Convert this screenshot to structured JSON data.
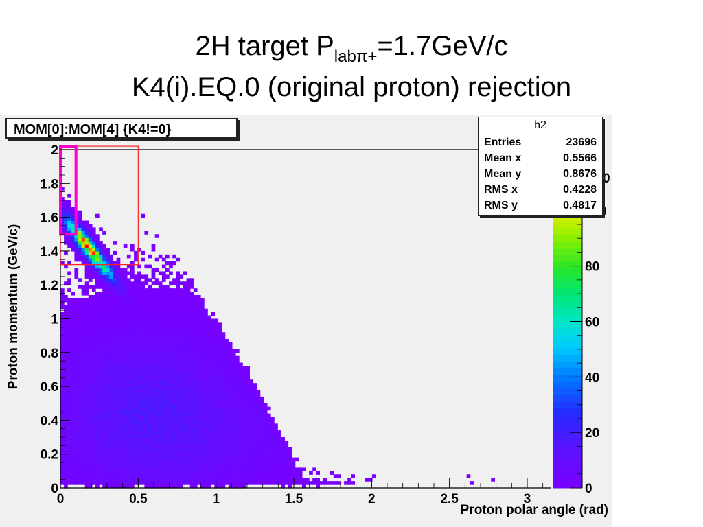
{
  "slide": {
    "title_line1_pre": "2H target P",
    "title_line1_sub": "labπ+",
    "title_line1_post": "=1.7GeV/c",
    "title_line2": "K4(i).EQ.0 (original proton) rejection"
  },
  "histogram": {
    "title": "MOM[0]:MOM[4] {K4!=0}",
    "stats": {
      "name": "h2",
      "rows": [
        {
          "label": "Entries",
          "value": "23696"
        },
        {
          "label": "Mean x",
          "value": "0.5566"
        },
        {
          "label": "Mean y",
          "value": "0.8676"
        },
        {
          "label": "RMS x",
          "value": "0.4228"
        },
        {
          "label": "RMS y",
          "value": "0.4817"
        }
      ]
    }
  },
  "chart_data": {
    "type": "heatmap",
    "xlabel": "Proton polar angle (rad)",
    "ylabel": "Proton momentum (GeV/c)",
    "xlim": [
      0,
      3.15
    ],
    "ylim": [
      0,
      2.0
    ],
    "x_ticks": [
      "0",
      "0.5",
      "1",
      "1.5",
      "2",
      "2.5",
      "3"
    ],
    "y_ticks": [
      "0",
      "0.2",
      "0.4",
      "0.6",
      "0.8",
      "1",
      "1.2",
      "1.4",
      "1.6",
      "1.8",
      "2"
    ],
    "z_ticks": [
      "0",
      "20",
      "40",
      "60",
      "80",
      "100"
    ],
    "z_top_partial": "0",
    "zlim": [
      0,
      120
    ],
    "colors": {
      "background": "#f0f0f0",
      "low": "#7a00ff",
      "high": "#ff0000",
      "red_box": "#ff2020",
      "magenta_box": "#ff00cc"
    },
    "boxes": [
      {
        "x0": 0.0,
        "x1": 0.5,
        "y0": 1.32,
        "y1": 2.02,
        "color": "red"
      },
      {
        "x0": 0.0,
        "x1": 0.1,
        "y0": 1.5,
        "y1": 2.02,
        "color": "magenta"
      }
    ],
    "density_model": {
      "peak": {
        "x": 0.15,
        "y": 1.57,
        "counts": 110
      },
      "band_x_extent": [
        0.02,
        0.4
      ],
      "bulk_counts": 15,
      "tail_max_x": 3.05,
      "momentum_envelope": "p_max ≈ 1.7·cos(θ)"
    }
  }
}
